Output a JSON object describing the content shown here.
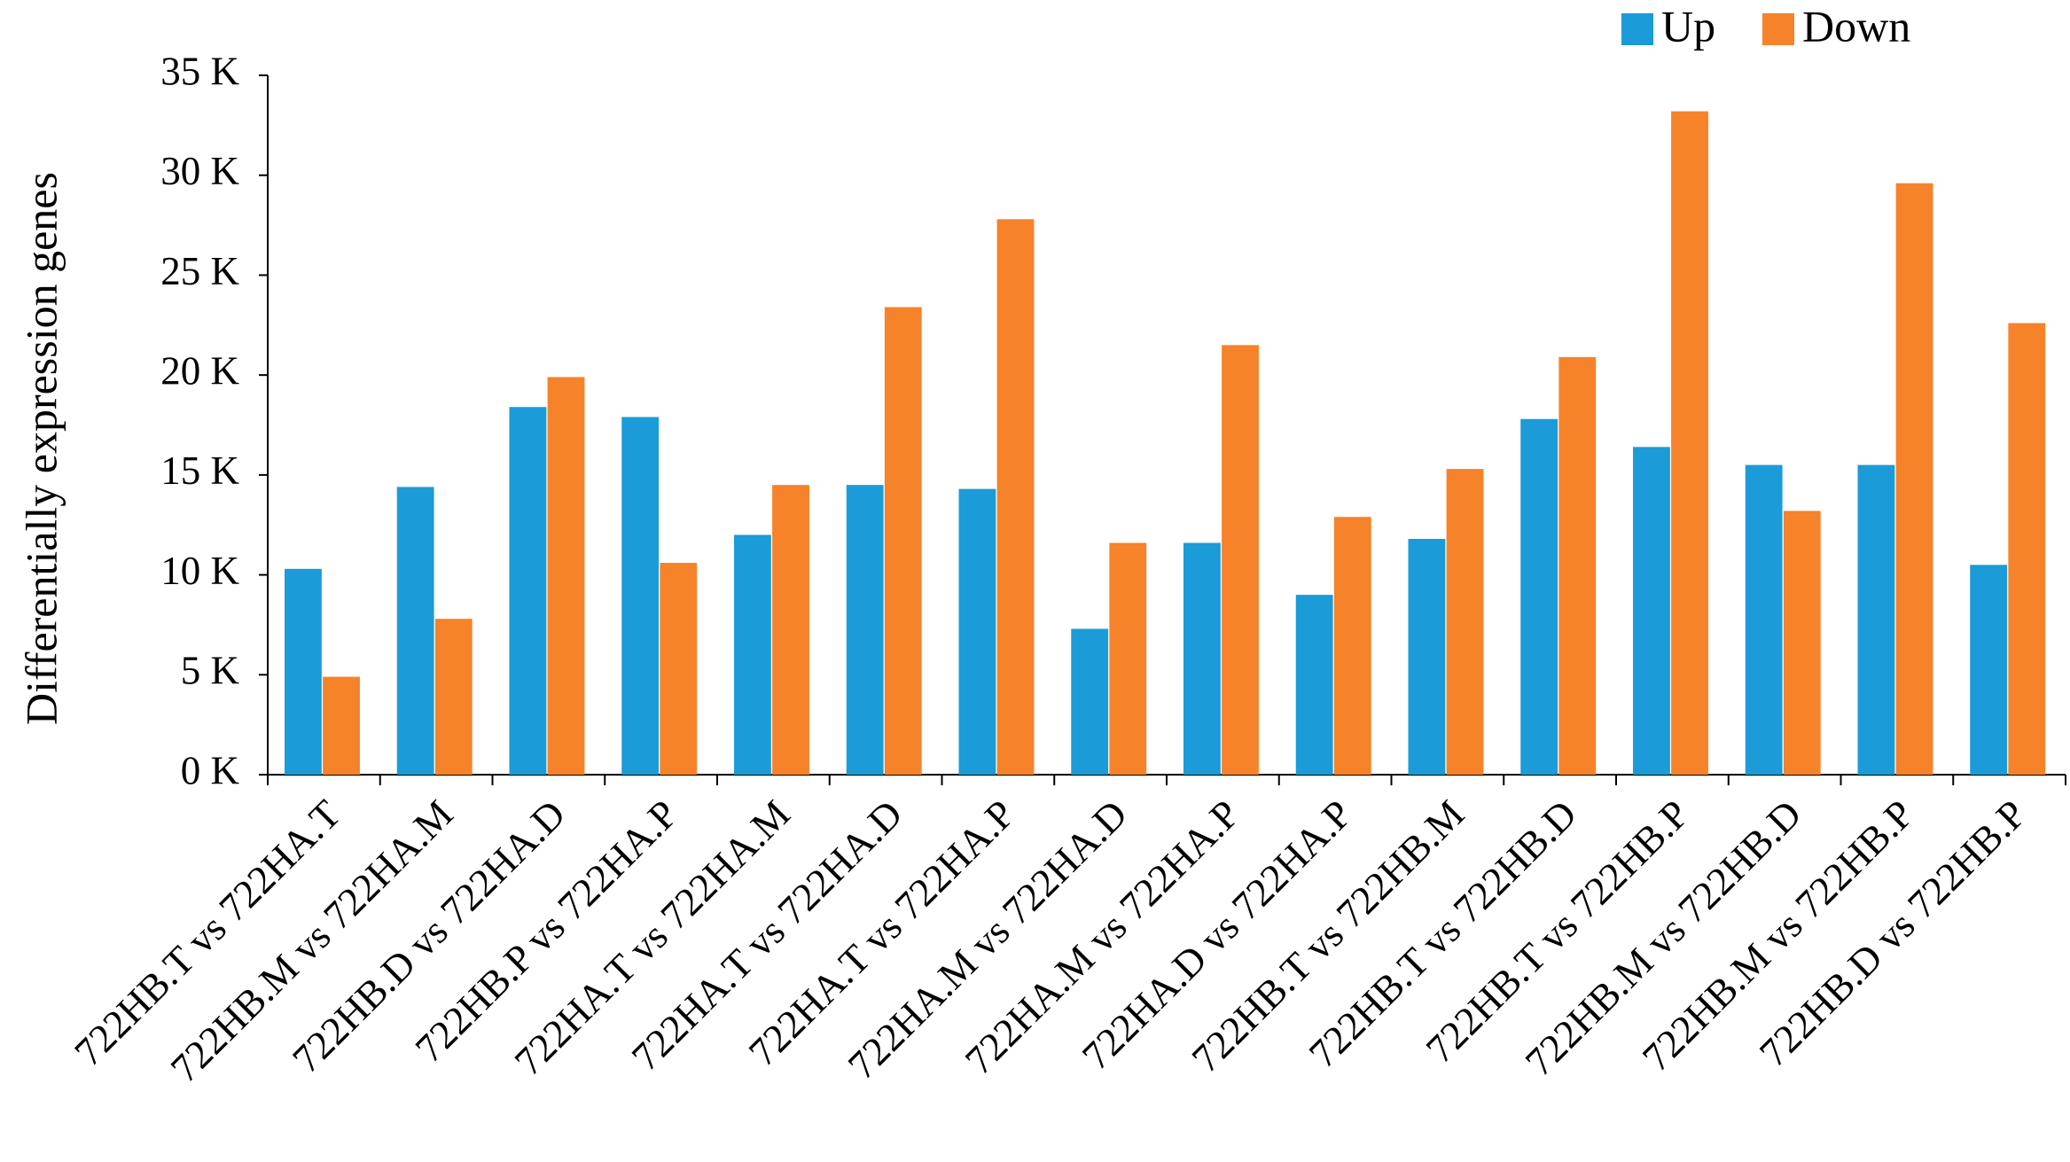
{
  "chart_data": {
    "type": "bar",
    "y_label": "Differentially expression genes",
    "categories": [
      "722HB.T vs 722HA.T",
      "722HB.M vs 722HA.M",
      "722HB.D vs 722HA.D",
      "722HB.P vs 722HA.P",
      "722HA.T vs 722HA.M",
      "722HA.T vs 722HA.D",
      "722HA.T vs 722HA.P",
      "722HA.M vs 722HA.D",
      "722HA.M vs 722HA.P",
      "722HA.D vs 722HA.P",
      "722HB.T vs 722HB.M",
      "722HB.T vs 722HB.D",
      "722HB.T vs 722HB.P",
      "722HB.M vs 722HB.D",
      "722HB.M vs 722HB.P",
      "722HB.D vs 722HB.P"
    ],
    "series": [
      {
        "name": "Up",
        "color": "#1b9bd7",
        "values": [
          10300,
          14400,
          18400,
          17900,
          12000,
          14500,
          14300,
          7300,
          11600,
          9000,
          11800,
          17800,
          16400,
          15500,
          15500,
          10500
        ]
      },
      {
        "name": "Down",
        "color": "#f6822a",
        "values": [
          4900,
          7800,
          19900,
          10600,
          14500,
          23400,
          27800,
          11600,
          21500,
          12900,
          15300,
          20900,
          33200,
          13200,
          29600,
          22600
        ]
      }
    ],
    "ylim": [
      0,
      35000
    ],
    "yticks": [
      {
        "value": 0,
        "label": "0 K"
      },
      {
        "value": 5000,
        "label": "5 K"
      },
      {
        "value": 10000,
        "label": "10 K"
      },
      {
        "value": 15000,
        "label": "15 K"
      },
      {
        "value": 20000,
        "label": "20 K"
      },
      {
        "value": 25000,
        "label": "25 K"
      },
      {
        "value": 30000,
        "label": "30 K"
      },
      {
        "value": 35000,
        "label": "35 K"
      }
    ],
    "grid": false
  }
}
